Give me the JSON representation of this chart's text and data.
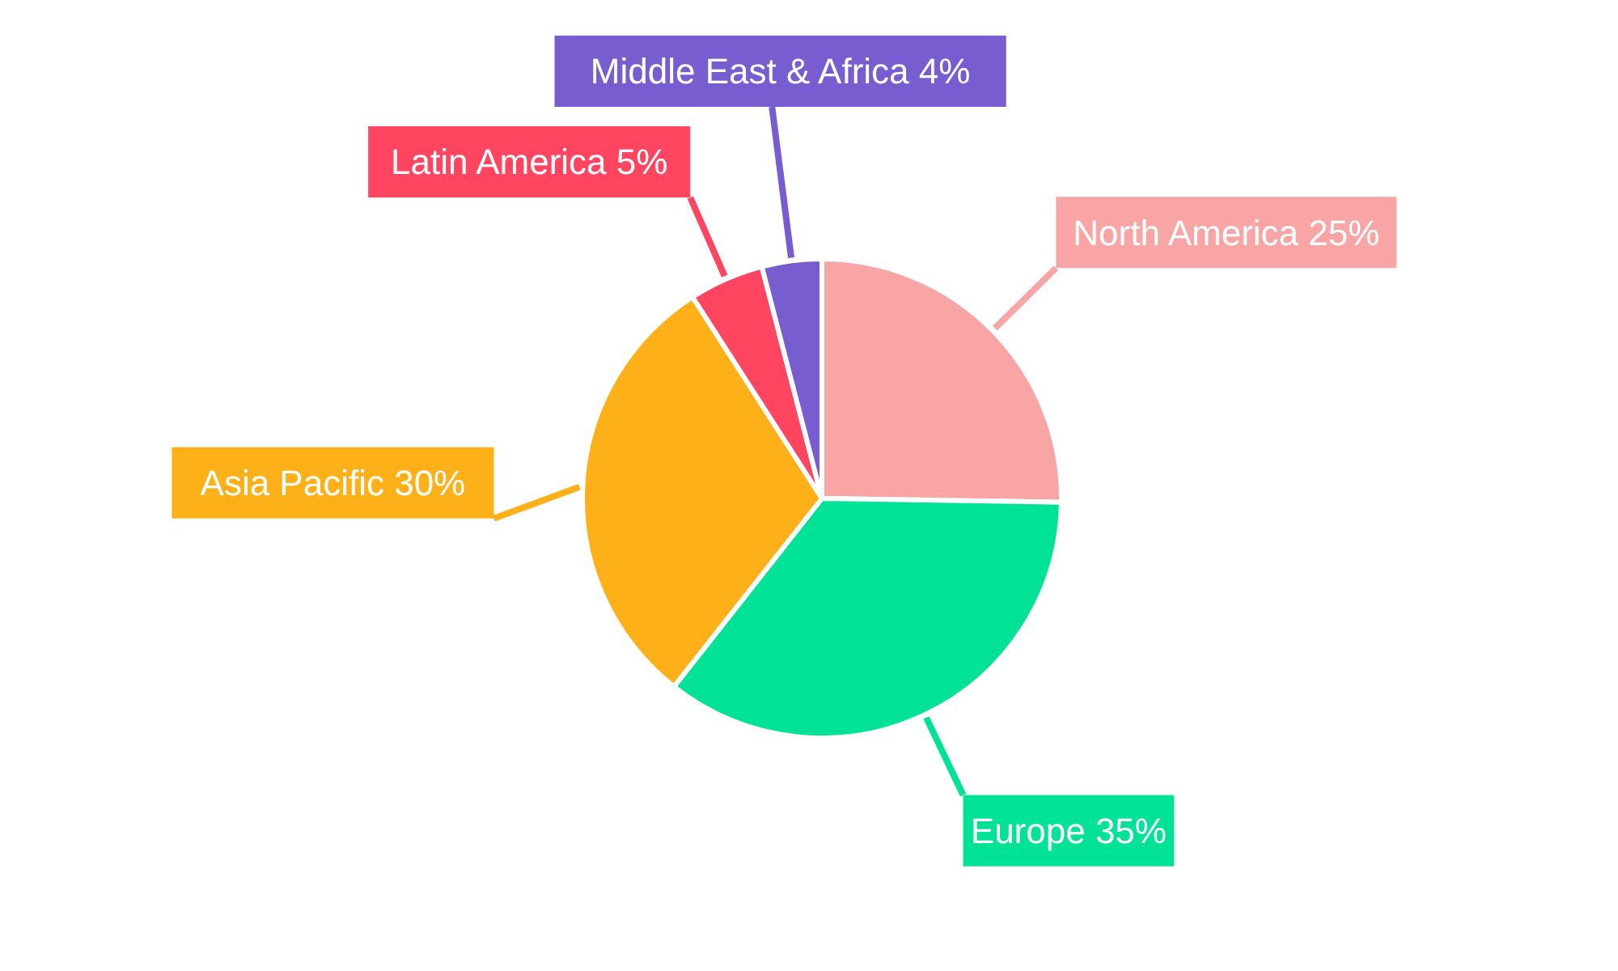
{
  "chart_data": {
    "type": "pie",
    "categories": [
      "North America",
      "Europe",
      "Asia Pacific",
      "Latin America",
      "Middle East & Africa"
    ],
    "values": [
      25,
      35,
      30,
      5,
      4
    ],
    "value_labels": [
      "25%",
      "35%",
      "30%",
      "5%",
      "4%"
    ],
    "colors": [
      "#f9a5a5",
      "#00e396",
      "#feb019",
      "#ff4560",
      "#775dd0"
    ]
  }
}
